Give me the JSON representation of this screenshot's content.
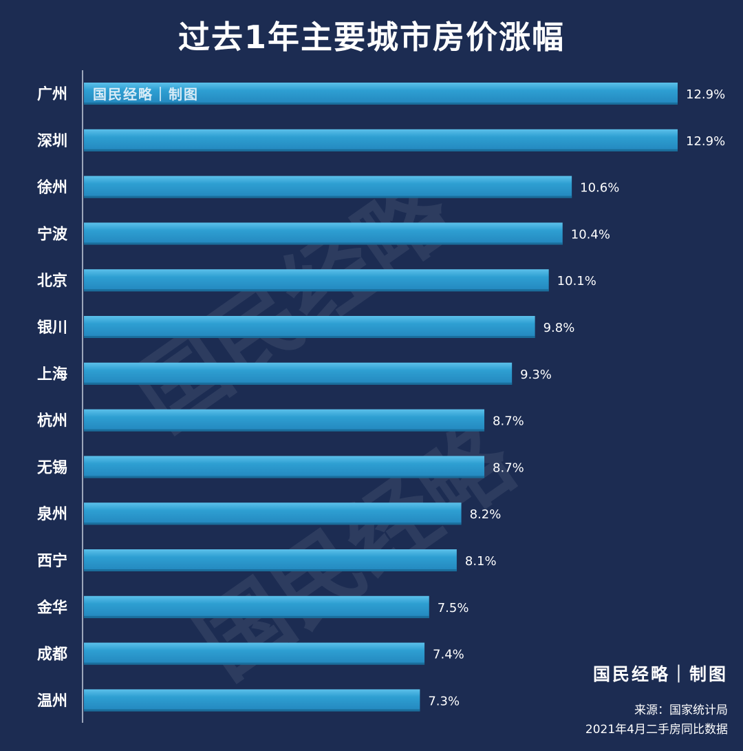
{
  "title": "过去1年主要城市房价涨幅",
  "watermark": "国民经略",
  "stamp": "国民经略｜制图",
  "source": "来源：国家统计局",
  "note": "2021年4月二手房同比数据",
  "colors": {
    "background": "#1c2c52",
    "bar": "#2e9fd2",
    "bar_top": "#5cc0ea",
    "text": "#ffffff"
  },
  "chart_data": {
    "type": "bar",
    "orientation": "horizontal",
    "title": "过去1年主要城市房价涨幅",
    "categories": [
      "广州",
      "深圳",
      "徐州",
      "宁波",
      "北京",
      "银川",
      "上海",
      "杭州",
      "无锡",
      "泉州",
      "西宁",
      "金华",
      "成都",
      "温州"
    ],
    "values": [
      12.9,
      12.9,
      10.6,
      10.4,
      10.1,
      9.8,
      9.3,
      8.7,
      8.7,
      8.2,
      8.1,
      7.5,
      7.4,
      7.3
    ],
    "labels": [
      "12.9%",
      "12.9%",
      "10.6%",
      "10.4%",
      "10.1%",
      "9.8%",
      "9.3%",
      "8.7%",
      "8.7%",
      "8.2%",
      "8.1%",
      "7.5%",
      "7.4%",
      "7.3%"
    ],
    "unit": "%",
    "xlim": [
      0,
      12.9
    ],
    "grid": false,
    "legend": "none"
  }
}
